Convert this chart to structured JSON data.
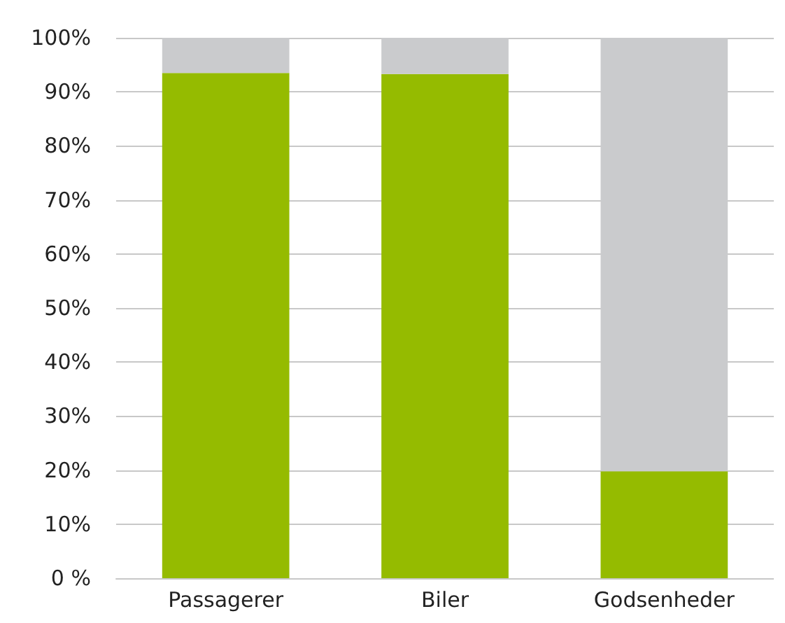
{
  "chart_data": {
    "type": "bar",
    "stacked": true,
    "categories": [
      "Passagerer",
      "Biler",
      "Godsenheder"
    ],
    "series": [
      {
        "color": "#95bb00",
        "values": [
          93.5,
          93.3,
          19.8
        ]
      },
      {
        "color": "#cacbcd",
        "values": [
          6.5,
          6.7,
          80.2
        ]
      }
    ],
    "ylim": [
      0,
      100
    ],
    "yticks": [
      {
        "value": 0,
        "label": "0 %"
      },
      {
        "value": 10,
        "label": "10%"
      },
      {
        "value": 20,
        "label": "20%"
      },
      {
        "value": 30,
        "label": "30%"
      },
      {
        "value": 40,
        "label": "40%"
      },
      {
        "value": 50,
        "label": "50%"
      },
      {
        "value": 60,
        "label": "60%"
      },
      {
        "value": 70,
        "label": "70%"
      },
      {
        "value": 80,
        "label": "80%"
      },
      {
        "value": 90,
        "label": "90%"
      },
      {
        "value": 100,
        "label": "100%"
      }
    ],
    "grid": "y"
  }
}
